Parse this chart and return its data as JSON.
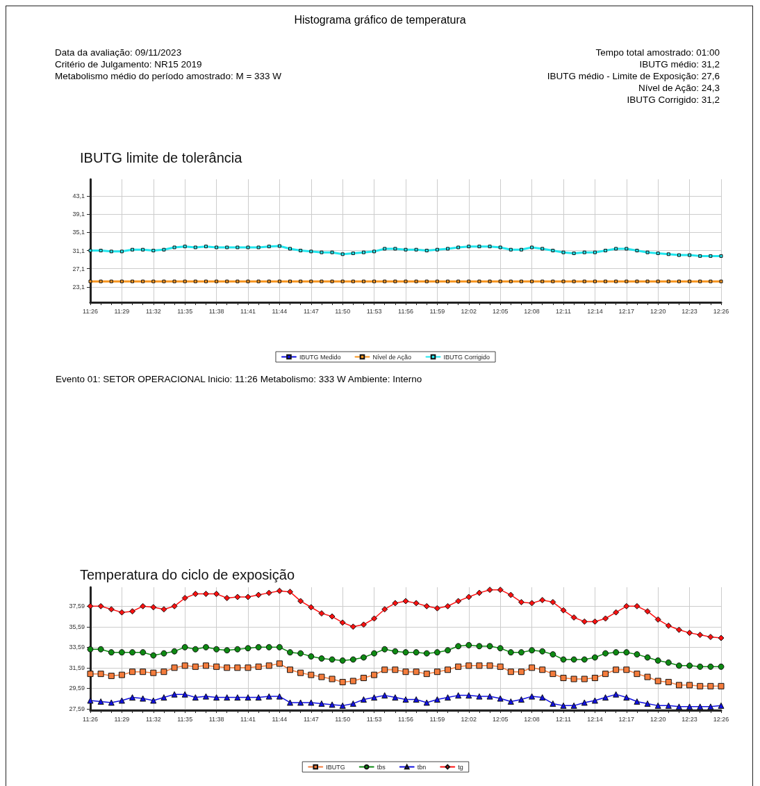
{
  "chart_data": [
    {
      "type": "other",
      "title": "Histograma gráfico de temperatura",
      "annotations": [
        "Data da avaliação: 09/11/2023",
        "Critério de Julgamento: NR15 2019",
        "Metabolismo médio do período amostrado: M = 333 W",
        "Tempo total amostrado: 01:00",
        "IBUTG médio: 31,2",
        "IBUTG médio - Limite de Exposição: 27,6",
        "Nível de Ação: 24,3",
        "IBUTG Corrigido: 31,2"
      ]
    },
    {
      "type": "line",
      "title": "IBUTG limite de tolerância",
      "categories": [
        "11:26",
        null,
        null,
        "11:29",
        null,
        null,
        "11:32",
        null,
        null,
        "11:35",
        null,
        null,
        "11:38",
        null,
        null,
        "11:41",
        null,
        null,
        "11:44",
        null,
        null,
        "11:47",
        null,
        null,
        "11:50",
        null,
        null,
        "11:53",
        null,
        null,
        "11:56",
        null,
        null,
        "11:59",
        null,
        null,
        "12:02",
        null,
        null,
        "12:05",
        null,
        null,
        "12:08",
        null,
        null,
        "12:11",
        null,
        null,
        "12:14",
        null,
        null,
        "12:17",
        null,
        null,
        "12:20",
        null,
        null,
        "12:23",
        null,
        null,
        "12:26"
      ],
      "series": [
        {
          "name": "IBUTG Medido",
          "color": "#1010e0",
          "values": [
            null,
            null,
            null,
            null,
            null,
            null,
            null,
            null,
            null,
            null,
            null,
            null,
            null,
            null,
            null,
            null,
            null,
            null,
            null,
            null,
            null,
            null,
            null,
            null,
            null,
            null,
            null,
            null,
            null,
            null,
            null,
            null,
            null,
            null,
            null,
            null,
            null,
            null,
            null,
            null,
            null,
            null,
            null,
            null,
            null,
            null,
            null,
            null,
            null,
            null,
            null,
            null,
            null,
            null,
            null,
            null,
            null,
            null,
            null,
            null,
            null
          ]
        },
        {
          "name": "Nível de Ação",
          "color": "#f7941d",
          "values": [
            24.3,
            24.3,
            24.3,
            24.3,
            24.3,
            24.3,
            24.3,
            24.3,
            24.3,
            24.3,
            24.3,
            24.3,
            24.3,
            24.3,
            24.3,
            24.3,
            24.3,
            24.3,
            24.3,
            24.3,
            24.3,
            24.3,
            24.3,
            24.3,
            24.3,
            24.3,
            24.3,
            24.3,
            24.3,
            24.3,
            24.3,
            24.3,
            24.3,
            24.3,
            24.3,
            24.3,
            24.3,
            24.3,
            24.3,
            24.3,
            24.3,
            24.3,
            24.3,
            24.3,
            24.3,
            24.3,
            24.3,
            24.3,
            24.3,
            24.3,
            24.3,
            24.3,
            24.3,
            24.3,
            24.3,
            24.3,
            24.3,
            24.3,
            24.3,
            24.3,
            24.3
          ]
        },
        {
          "name": "IBUTG Corrigido",
          "color": "#22e6ee",
          "values": [
            31.1,
            31.1,
            30.9,
            30.9,
            31.3,
            31.3,
            31.1,
            31.3,
            31.8,
            32.0,
            31.8,
            32.0,
            31.8,
            31.8,
            31.8,
            31.8,
            31.8,
            32.0,
            32.1,
            31.5,
            31.1,
            30.9,
            30.7,
            30.7,
            30.3,
            30.5,
            30.7,
            30.9,
            31.5,
            31.5,
            31.3,
            31.3,
            31.1,
            31.3,
            31.5,
            31.8,
            32.0,
            32.0,
            32.0,
            31.8,
            31.3,
            31.3,
            31.8,
            31.5,
            31.1,
            30.7,
            30.5,
            30.7,
            30.7,
            31.1,
            31.5,
            31.5,
            31.1,
            30.7,
            30.5,
            30.3,
            30.1,
            30.1,
            29.9,
            29.9,
            29.9
          ]
        }
      ],
      "ylim": [
        19.7,
        46.8
      ],
      "yticks": [
        {
          "value": 23.1,
          "label": "23,1"
        },
        {
          "value": 27.1,
          "label": "27,1"
        },
        {
          "value": 31.1,
          "label": "31,1"
        },
        {
          "value": 35.1,
          "label": "35,1"
        },
        {
          "value": 39.1,
          "label": "39,1"
        },
        {
          "value": 43.1,
          "label": "43,1"
        }
      ],
      "grid": true,
      "legend": "bottom",
      "marker": "square",
      "line_style": "solid",
      "annotations": [
        "Evento 01:  SETOR OPERACIONAL  Inicio: 11:26  Metabolismo: 333 W  Ambiente: Interno"
      ]
    },
    {
      "type": "line",
      "title": "Temperatura do ciclo de exposição",
      "categories": [
        "11:26",
        null,
        null,
        "11:29",
        null,
        null,
        "11:32",
        null,
        null,
        "11:35",
        null,
        null,
        "11:38",
        null,
        null,
        "11:41",
        null,
        null,
        "11:44",
        null,
        null,
        "11:47",
        null,
        null,
        "11:50",
        null,
        null,
        "11:53",
        null,
        null,
        "11:56",
        null,
        null,
        "11:59",
        null,
        null,
        "12:02",
        null,
        null,
        "12:05",
        null,
        null,
        "12:08",
        null,
        null,
        "12:11",
        null,
        null,
        "12:14",
        null,
        null,
        "12:17",
        null,
        null,
        "12:20",
        null,
        null,
        "12:23",
        null,
        null,
        "12:26"
      ],
      "series": [
        {
          "name": "IBUTG",
          "color": "#f47c3c",
          "marker": "square",
          "values": [
            31.0,
            31.0,
            30.8,
            30.9,
            31.2,
            31.2,
            31.1,
            31.2,
            31.6,
            31.8,
            31.7,
            31.8,
            31.7,
            31.6,
            31.6,
            31.6,
            31.7,
            31.8,
            32.0,
            31.4,
            31.1,
            30.9,
            30.7,
            30.5,
            30.2,
            30.3,
            30.6,
            30.9,
            31.4,
            31.4,
            31.2,
            31.2,
            31.0,
            31.2,
            31.4,
            31.7,
            31.8,
            31.8,
            31.8,
            31.7,
            31.2,
            31.2,
            31.6,
            31.4,
            31.0,
            30.6,
            30.5,
            30.5,
            30.6,
            31.0,
            31.4,
            31.4,
            31.0,
            30.7,
            30.3,
            30.2,
            29.9,
            29.9,
            29.8,
            29.8,
            29.8
          ]
        },
        {
          "name": "tbs",
          "color": "#0d8a12",
          "marker": "circle",
          "values": [
            33.4,
            33.4,
            33.1,
            33.1,
            33.1,
            33.1,
            32.8,
            33.0,
            33.2,
            33.6,
            33.4,
            33.6,
            33.4,
            33.3,
            33.4,
            33.5,
            33.6,
            33.6,
            33.6,
            33.1,
            33.0,
            32.7,
            32.5,
            32.4,
            32.3,
            32.4,
            32.6,
            33.0,
            33.4,
            33.2,
            33.1,
            33.1,
            33.0,
            33.1,
            33.3,
            33.7,
            33.8,
            33.7,
            33.7,
            33.5,
            33.1,
            33.1,
            33.3,
            33.2,
            32.9,
            32.4,
            32.4,
            32.4,
            32.6,
            33.0,
            33.1,
            33.1,
            32.9,
            32.6,
            32.3,
            32.1,
            31.8,
            31.8,
            31.7,
            31.7,
            31.7
          ]
        },
        {
          "name": "tbn",
          "color": "#1010e0",
          "marker": "triangle",
          "values": [
            28.4,
            28.3,
            28.2,
            28.4,
            28.7,
            28.6,
            28.4,
            28.7,
            29.0,
            29.0,
            28.7,
            28.8,
            28.7,
            28.7,
            28.7,
            28.7,
            28.7,
            28.8,
            28.8,
            28.2,
            28.2,
            28.2,
            28.1,
            28.0,
            27.9,
            28.1,
            28.5,
            28.7,
            28.9,
            28.7,
            28.5,
            28.5,
            28.2,
            28.5,
            28.7,
            28.9,
            28.9,
            28.8,
            28.8,
            28.6,
            28.3,
            28.5,
            28.8,
            28.7,
            28.1,
            27.9,
            27.9,
            28.2,
            28.4,
            28.7,
            29.0,
            28.7,
            28.3,
            28.1,
            27.9,
            27.9,
            27.8,
            27.8,
            27.8,
            27.8,
            27.9
          ]
        },
        {
          "name": "tg",
          "color": "#ff1010",
          "marker": "diamond",
          "values": [
            37.6,
            37.6,
            37.3,
            37.0,
            37.1,
            37.6,
            37.5,
            37.3,
            37.6,
            38.4,
            38.8,
            38.8,
            38.8,
            38.4,
            38.5,
            38.5,
            38.7,
            38.9,
            39.1,
            39.0,
            38.1,
            37.5,
            36.9,
            36.6,
            36.0,
            35.6,
            35.8,
            36.4,
            37.3,
            37.9,
            38.1,
            37.9,
            37.6,
            37.4,
            37.6,
            38.1,
            38.5,
            38.9,
            39.2,
            39.2,
            38.7,
            38.0,
            37.9,
            38.2,
            38.0,
            37.2,
            36.5,
            36.1,
            36.1,
            36.4,
            37.0,
            37.6,
            37.6,
            37.1,
            36.3,
            35.7,
            35.3,
            35.0,
            34.8,
            34.6,
            34.5
          ]
        }
      ],
      "ylim": [
        27.45,
        39.45
      ],
      "yticks": [
        {
          "value": 27.59,
          "label": "27,59"
        },
        {
          "value": 29.59,
          "label": "29,59"
        },
        {
          "value": 31.59,
          "label": "31,59"
        },
        {
          "value": 33.59,
          "label": "33,59"
        },
        {
          "value": 35.59,
          "label": "35,59"
        },
        {
          "value": 37.59,
          "label": "37,59"
        }
      ],
      "grid": true,
      "legend": "bottom",
      "line_style": "solid"
    }
  ]
}
